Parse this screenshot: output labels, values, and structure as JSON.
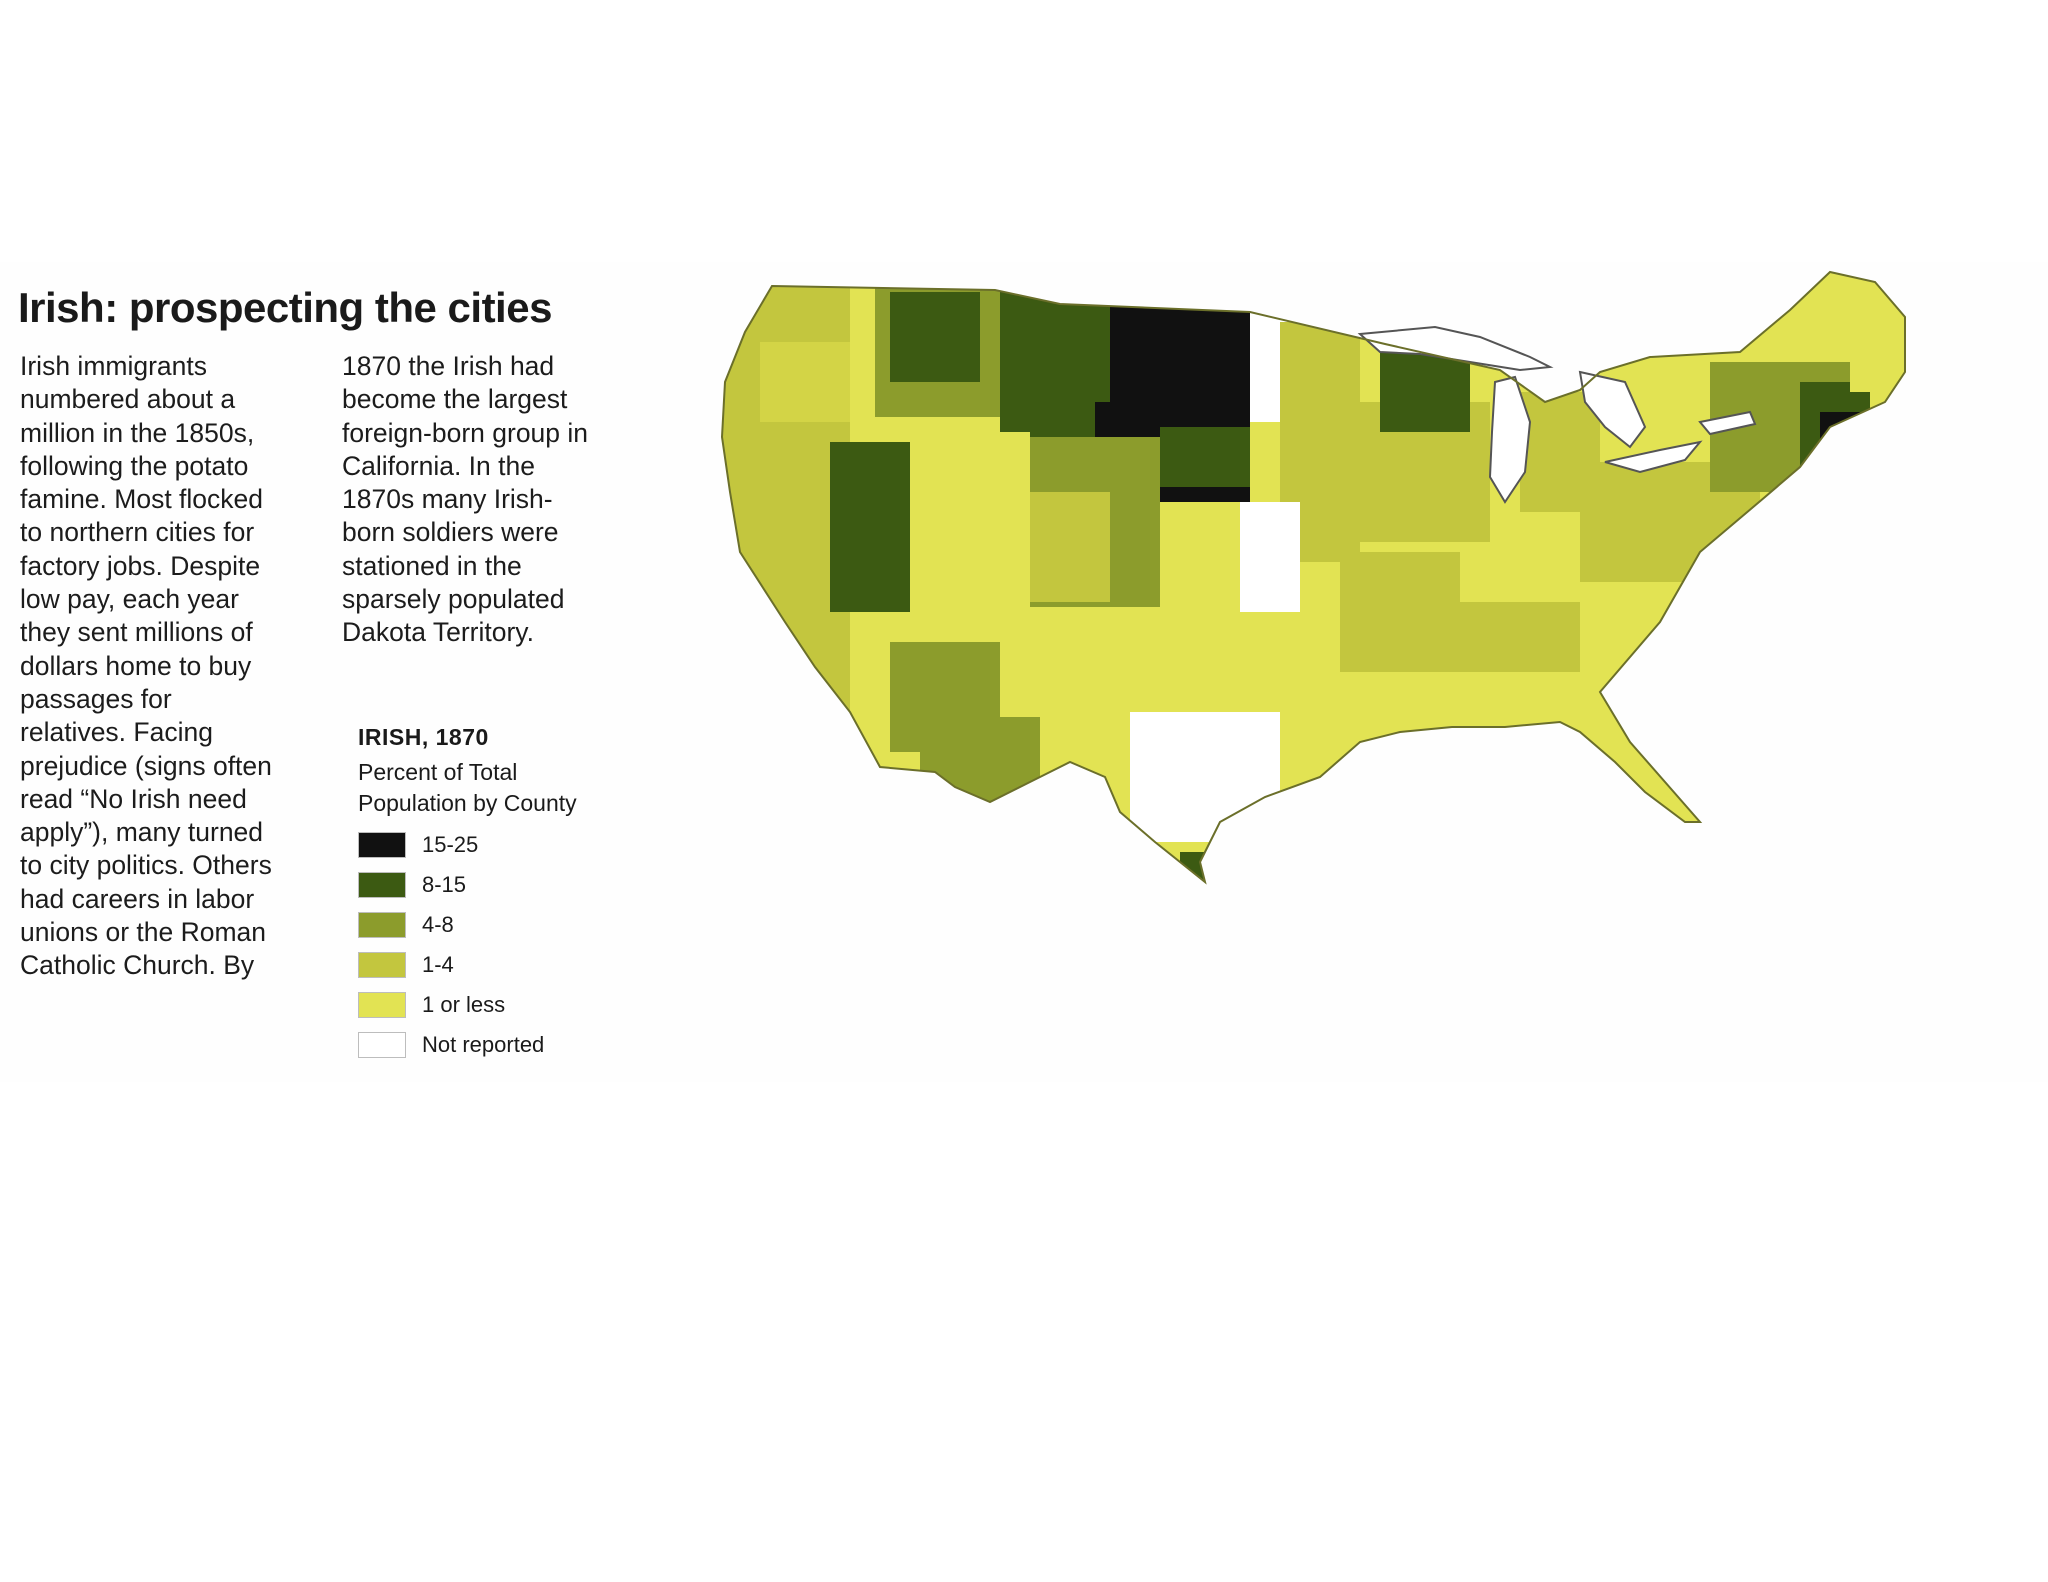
{
  "title": "Irish: prospecting the cities",
  "body": {
    "column1": "Irish immigrants\nnumbered about a\nmillion in the 1850s,\nfollowing the potato\nfamine. Most flocked\nto northern cities for\nfactory jobs. Despite\nlow pay, each year\nthey sent millions of\ndollars home to buy\npassages for\nrelatives. Facing\nprejudice (signs often\nread “No Irish need\napply”), many turned\nto city politics. Others\nhad careers in labor\nunions or the Roman\nCatholic Church. By",
    "column2": "1870 the Irish had\nbecome the largest\nforeign-born group in\nCalifornia. In the\n1870s many Irish-\nborn soldiers were\nstationed in the\nsparsely populated\nDakota Territory."
  },
  "legend": {
    "title": "IRISH, 1870",
    "subtitle": "Percent of Total\nPopulation by County",
    "items": [
      {
        "label": "15-25",
        "color": "#111111"
      },
      {
        "label": "8-15",
        "color": "#3c5a12"
      },
      {
        "label": "4-8",
        "color": "#8c9c2c"
      },
      {
        "label": "1-4",
        "color": "#c3c63e"
      },
      {
        "label": "1 or less",
        "color": "#e2e353"
      },
      {
        "label": "Not reported",
        "color": "#ffffff"
      }
    ]
  },
  "map": {
    "name": "United States county map, Irish-born population 1870",
    "colors": {
      "water": "#ffffff",
      "lake_outline": "#555555",
      "state_border": "#6b6f2a"
    }
  }
}
